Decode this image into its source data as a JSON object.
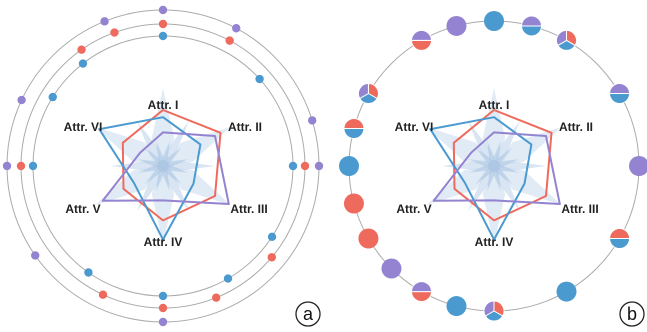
{
  "colors": {
    "red": "#ee6a5c",
    "blue": "#4a9ad0",
    "purple": "#9383d0",
    "ring": "#aaaaaa",
    "glyph": "#c9daee"
  },
  "attributes": [
    "Attr. I",
    "Attr. II",
    "Attr. III",
    "Attr. IV",
    "Attr. V",
    "Attr. VI"
  ],
  "panels": [
    {
      "label": "a"
    },
    {
      "label": "b"
    }
  ],
  "radar": {
    "series": [
      {
        "color": "red",
        "values": [
          0.7,
          0.83,
          0.75,
          0.68,
          0.57,
          0.58
        ]
      },
      {
        "color": "blue",
        "values": [
          0.61,
          0.54,
          0.44,
          0.92,
          0.42,
          0.92
        ]
      },
      {
        "color": "purple",
        "values": [
          0.42,
          0.75,
          0.95,
          0.43,
          0.87,
          0.33
        ]
      }
    ]
  },
  "panel_a_markers": [
    {
      "angle": 0,
      "ring": 3,
      "color": "purple"
    },
    {
      "angle": 0,
      "ring": 2,
      "color": "red"
    },
    {
      "angle": 0,
      "ring": 1,
      "color": "blue"
    },
    {
      "angle": 28,
      "ring": 2,
      "color": "red"
    },
    {
      "angle": 28,
      "ring": 3,
      "color": "purple"
    },
    {
      "angle": 48,
      "ring": 1,
      "color": "blue"
    },
    {
      "angle": 73,
      "ring": 3,
      "color": "purple"
    },
    {
      "angle": 90,
      "ring": 1,
      "color": "blue"
    },
    {
      "angle": 90,
      "ring": 2,
      "color": "red"
    },
    {
      "angle": 90,
      "ring": 3,
      "color": "purple"
    },
    {
      "angle": 123,
      "ring": 1,
      "color": "blue"
    },
    {
      "angle": 130,
      "ring": 2,
      "color": "red"
    },
    {
      "angle": 150,
      "ring": 1,
      "color": "blue"
    },
    {
      "angle": 158,
      "ring": 2,
      "color": "red"
    },
    {
      "angle": 180,
      "ring": 1,
      "color": "blue"
    },
    {
      "angle": 180,
      "ring": 2,
      "color": "red"
    },
    {
      "angle": 180,
      "ring": 3,
      "color": "purple"
    },
    {
      "angle": 215,
      "ring": 1,
      "color": "blue"
    },
    {
      "angle": 205,
      "ring": 2,
      "color": "red"
    },
    {
      "angle": 235,
      "ring": 3,
      "color": "purple"
    },
    {
      "angle": 270,
      "ring": 1,
      "color": "blue"
    },
    {
      "angle": 270,
      "ring": 2,
      "color": "red"
    },
    {
      "angle": 270,
      "ring": 3,
      "color": "purple"
    },
    {
      "angle": 302,
      "ring": 1,
      "color": "blue"
    },
    {
      "angle": 295,
      "ring": 3,
      "color": "purple"
    },
    {
      "angle": 325,
      "ring": 2,
      "color": "red"
    },
    {
      "angle": 322,
      "ring": 1,
      "color": "blue"
    },
    {
      "angle": 340,
      "ring": 2,
      "color": "red"
    },
    {
      "angle": 338,
      "ring": 3,
      "color": "purple"
    }
  ],
  "panel_b_markers": [
    {
      "angle": 0,
      "colors": [
        "blue"
      ]
    },
    {
      "angle": 30,
      "colors": [
        "red",
        "blue",
        "purple"
      ]
    },
    {
      "angle": 60,
      "colors": [
        "blue",
        "purple"
      ]
    },
    {
      "angle": 90,
      "colors": [
        "purple"
      ]
    },
    {
      "angle": 120,
      "colors": [
        "blue",
        "red"
      ]
    },
    {
      "angle": 150,
      "colors": [
        "blue"
      ]
    },
    {
      "angle": 180,
      "colors": [
        "red",
        "blue",
        "purple"
      ]
    },
    {
      "angle": 210,
      "colors": [
        "red",
        "purple"
      ]
    },
    {
      "angle": 240,
      "colors": [
        "red"
      ]
    },
    {
      "angle": 270,
      "colors": [
        "blue"
      ]
    },
    {
      "angle": 300,
      "colors": [
        "red",
        "blue",
        "purple"
      ]
    },
    {
      "angle": 330,
      "colors": [
        "red",
        "purple"
      ]
    },
    {
      "angle": 15,
      "colors": [
        "blue",
        "purple"
      ]
    },
    {
      "angle": 345,
      "colors": [
        "purple"
      ]
    },
    {
      "angle": 255,
      "colors": [
        "red"
      ]
    },
    {
      "angle": 285,
      "colors": [
        "blue",
        "red"
      ]
    },
    {
      "angle": 225,
      "colors": [
        "purple"
      ]
    },
    {
      "angle": 195,
      "colors": [
        "blue"
      ]
    }
  ]
}
